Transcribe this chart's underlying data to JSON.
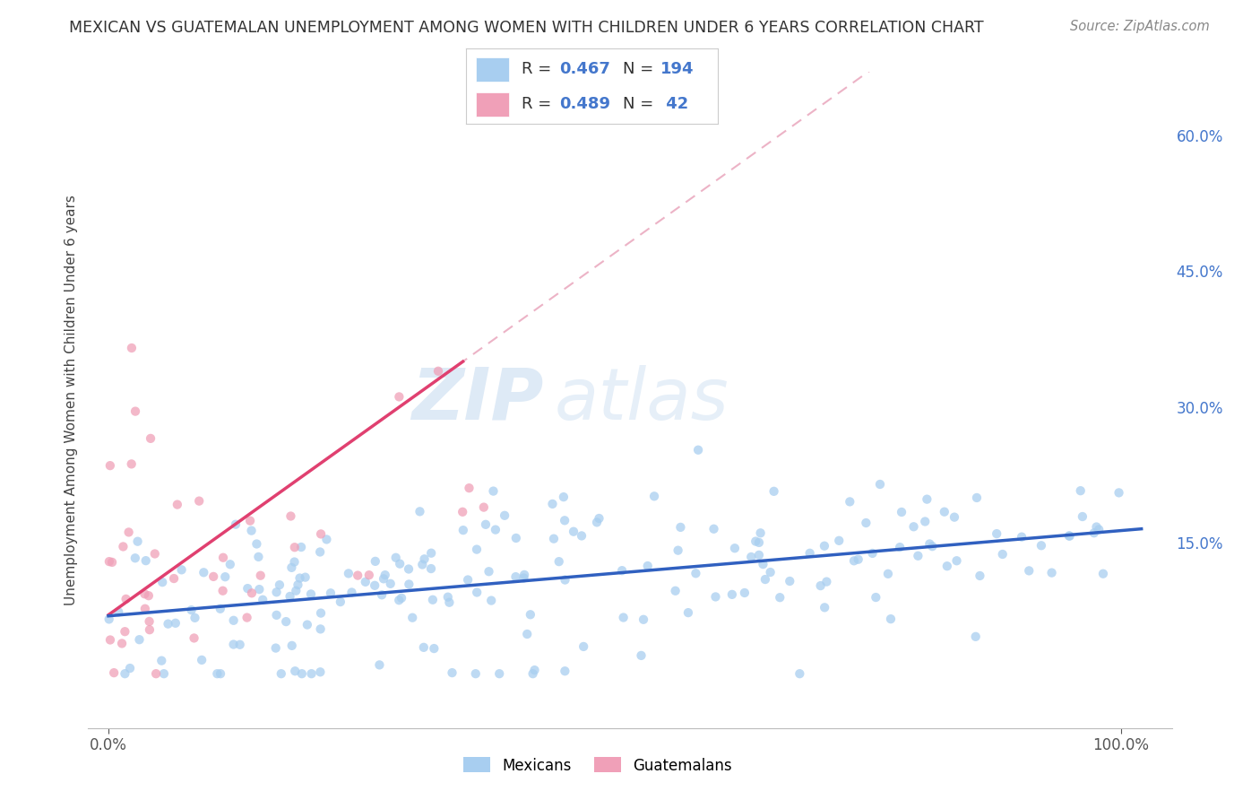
{
  "title": "MEXICAN VS GUATEMALAN UNEMPLOYMENT AMONG WOMEN WITH CHILDREN UNDER 6 YEARS CORRELATION CHART",
  "source": "Source: ZipAtlas.com",
  "ylabel": "Unemployment Among Women with Children Under 6 years",
  "ytick_labels": [
    "15.0%",
    "30.0%",
    "45.0%",
    "60.0%"
  ],
  "ytick_values": [
    0.15,
    0.3,
    0.45,
    0.6
  ],
  "xlim": [
    -0.02,
    1.05
  ],
  "ylim": [
    -0.055,
    0.67
  ],
  "mexican_color": "#A8CEF0",
  "guatemalan_color": "#F0A0B8",
  "mexican_line_color": "#3060C0",
  "guatemalan_line_color": "#E04070",
  "guatemalan_dash_color": "#E8A0B8",
  "R_mexican": 0.467,
  "N_mexican": 194,
  "R_guatemalan": 0.489,
  "N_guatemalan": 42,
  "watermark_zip": "ZIP",
  "watermark_atlas": "atlas",
  "legend_labels": [
    "Mexicans",
    "Guatemalans"
  ],
  "background_color": "#FFFFFF",
  "grid_color": "#DDDDDD",
  "title_color": "#333333",
  "source_color": "#888888",
  "axis_label_color": "#4477CC",
  "stat_text_color": "#333333",
  "stat_value_color": "#4477CC"
}
